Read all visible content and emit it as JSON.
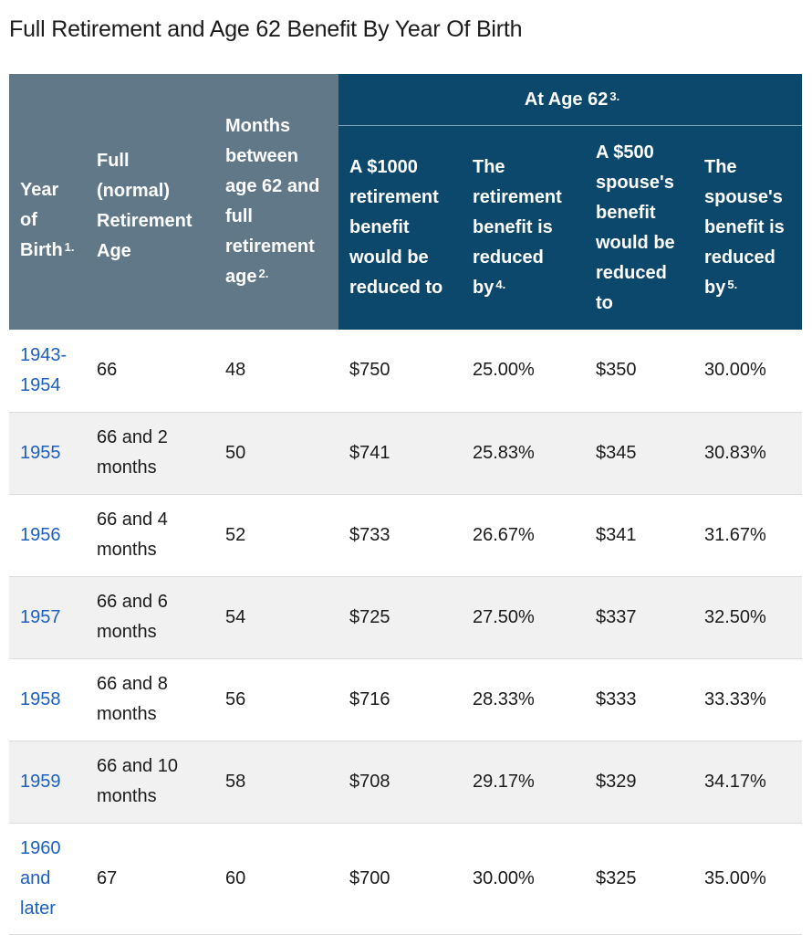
{
  "title": "Full Retirement and Age 62 Benefit By Year Of Birth",
  "header": {
    "year": "Year of Birth",
    "year_note": "1.",
    "full_age": "Full (normal) Retirement Age",
    "months": "Months between age 62 and full retirement age",
    "months_note": "2.",
    "group": "At Age 62",
    "group_note": "3.",
    "retire_to": "A $1000 retirement benefit would be reduced to",
    "retire_by": "The retirement benefit is reduced by",
    "retire_by_note": "4.",
    "spouse_to": "A $500 spouse's benefit would be reduced to",
    "spouse_by": "The spouse's benefit is reduced by",
    "spouse_by_note": "5."
  },
  "rows": [
    {
      "year": "1943-1954",
      "full_age": "66",
      "months": "48",
      "retire_to": "$750",
      "retire_by": "25.00%",
      "spouse_to": "$350",
      "spouse_by": "30.00%"
    },
    {
      "year": "1955",
      "full_age": "66 and 2 months",
      "months": "50",
      "retire_to": "$741",
      "retire_by": "25.83%",
      "spouse_to": "$345",
      "spouse_by": "30.83%"
    },
    {
      "year": "1956",
      "full_age": "66 and 4 months",
      "months": "52",
      "retire_to": "$733",
      "retire_by": "26.67%",
      "spouse_to": "$341",
      "spouse_by": "31.67%"
    },
    {
      "year": "1957",
      "full_age": "66 and 6 months",
      "months": "54",
      "retire_to": "$725",
      "retire_by": "27.50%",
      "spouse_to": "$337",
      "spouse_by": "32.50%"
    },
    {
      "year": "1958",
      "full_age": "66 and 8 months",
      "months": "56",
      "retire_to": "$716",
      "retire_by": "28.33%",
      "spouse_to": "$333",
      "spouse_by": "33.33%"
    },
    {
      "year": "1959",
      "full_age": "66 and 10 months",
      "months": "58",
      "retire_to": "$708",
      "retire_by": "29.17%",
      "spouse_to": "$329",
      "spouse_by": "34.17%"
    },
    {
      "year": "1960 and later",
      "full_age": "67",
      "months": "60",
      "retire_to": "$700",
      "retire_by": "30.00%",
      "spouse_to": "$325",
      "spouse_by": "35.00%"
    }
  ]
}
